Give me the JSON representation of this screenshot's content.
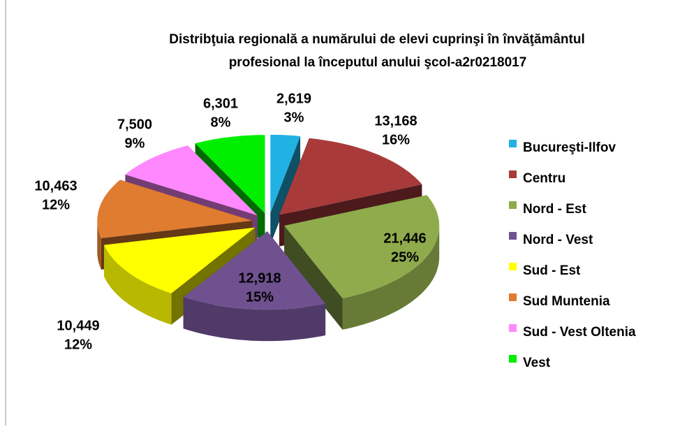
{
  "chart_data": {
    "type": "pie3d",
    "title": [
      "Distribţuia regională a numărului de elevi cuprinşi în învăţământul",
      "profesional la începutul anului şcol-a2r0218017"
    ],
    "categories": [
      "Bucureşti-Ilfov",
      "Centru",
      "Nord - Est",
      "Nord - Vest",
      "Sud - Est",
      "Sud Muntenia",
      "Sud - Vest Oltenia",
      "Vest"
    ],
    "values": [
      2619,
      13168,
      21446,
      12918,
      10449,
      10463,
      7500,
      6301
    ],
    "value_labels": [
      "2,619",
      "13,168",
      "21,446",
      "12,918",
      "10,449",
      "10,463",
      "7,500",
      "6,301"
    ],
    "percentages": [
      3,
      16,
      25,
      15,
      12,
      12,
      9,
      8
    ],
    "percentage_labels": [
      "3%",
      "16%",
      "25%",
      "15%",
      "12%",
      "12%",
      "9%",
      "8%"
    ],
    "colors": [
      "#1fb2e3",
      "#a83a3a",
      "#8fab4c",
      "#6f5190",
      "#ffff00",
      "#e07c30",
      "#ff88ff",
      "#00ee00"
    ],
    "legend": "right"
  }
}
